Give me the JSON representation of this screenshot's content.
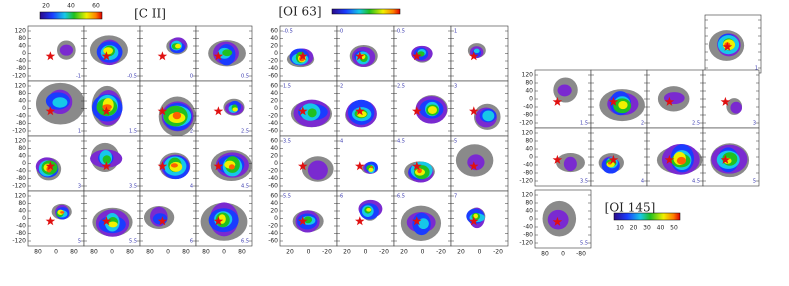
{
  "figures": [
    {
      "title": "[C II]",
      "colorbar_ticks": [
        "20",
        "40",
        "60"
      ],
      "yticks": [
        "120",
        "80",
        "40",
        "0",
        "-40",
        "-80",
        "-120"
      ],
      "xticks": [
        "80",
        "0",
        "80"
      ],
      "panel_labels": [
        "-1",
        "-0.5",
        "0",
        "0.5",
        "1",
        "1.5",
        "2",
        "2.5",
        "3",
        "3.5",
        "4",
        "4.5",
        "5",
        "5.5",
        "6",
        "6.5"
      ]
    },
    {
      "title": "[OI 63]",
      "yticks": [
        "60",
        "40",
        "20",
        "0",
        "-20",
        "-40",
        "-60"
      ],
      "xticks": [
        "20",
        "0",
        "-20"
      ],
      "panel_labels": [
        "-0.5",
        "0",
        "0.5",
        "1",
        "1.5",
        "2",
        "2.5",
        "3",
        "3.5",
        "4",
        "4.5",
        "5",
        "5.5",
        "6",
        "6.5",
        "7"
      ]
    },
    {
      "title": "[OI 145]",
      "colorbar_ticks": [
        "10",
        "20",
        "30",
        "40",
        "50"
      ],
      "yticks": [
        "120",
        "80",
        "40",
        "0",
        "-40",
        "-80",
        "-120"
      ],
      "xticks": [
        "80",
        "0",
        "-80"
      ],
      "panel_labels": [
        "1",
        "1.5",
        "2",
        "2.5",
        "3",
        "3.5",
        "4",
        "4.5",
        "5",
        "5.5"
      ]
    }
  ]
}
